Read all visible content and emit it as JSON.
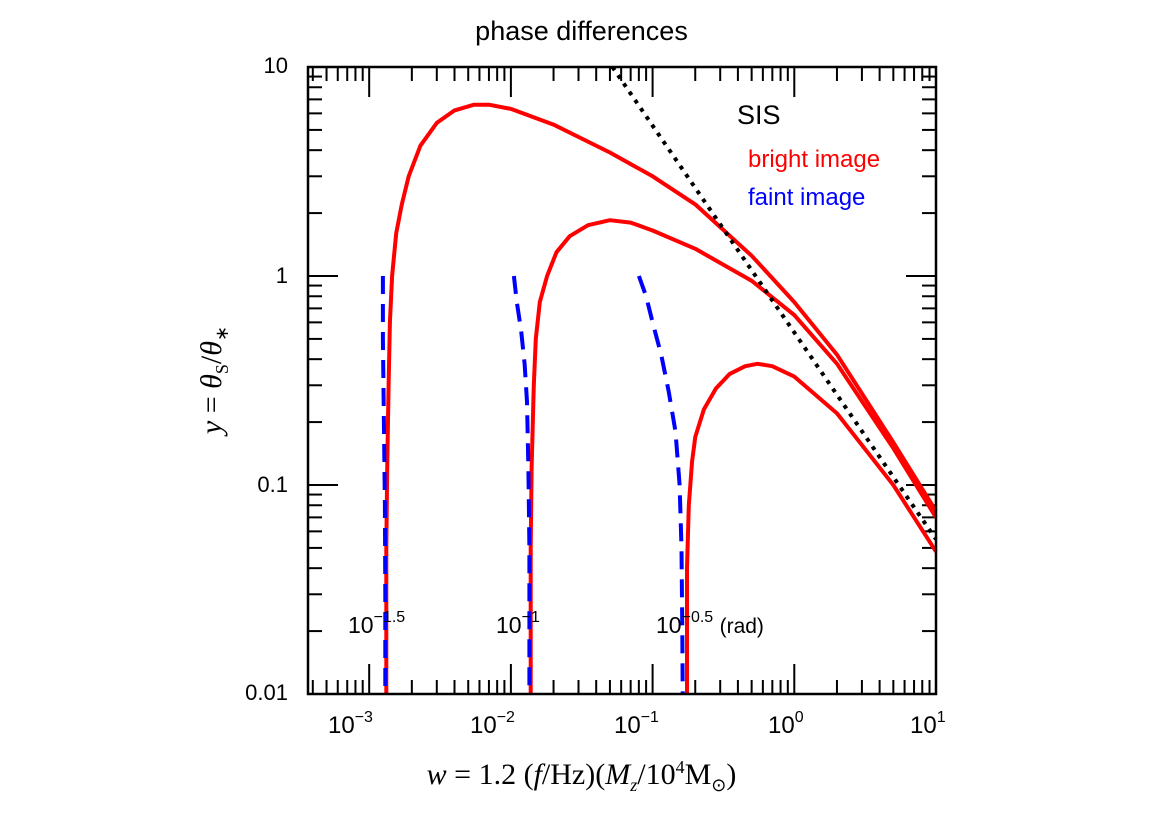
{
  "chart_data": {
    "type": "line",
    "title": "phase differences",
    "xlabel": "w = 1.2 (f/Hz)(M_z/10^4 M_sun)",
    "ylabel": "y = theta_s/theta_*",
    "xscale": "log",
    "yscale": "log",
    "xlim": [
      0.00037,
      10
    ],
    "ylim": [
      0.01,
      10
    ],
    "x_ticks": [
      "10^-3",
      "10^-2",
      "10^-1",
      "10^0",
      "10^1"
    ],
    "y_ticks": [
      "0.01",
      "0.1",
      "1",
      "10"
    ],
    "grid": false,
    "legend": {
      "position": "upper right",
      "header": "SIS",
      "entries": [
        {
          "label": "bright image",
          "color": "#ff0000",
          "style": "solid"
        },
        {
          "label": "faint image",
          "color": "#0000ff",
          "style": "dashed"
        }
      ]
    },
    "annotations": [
      {
        "text": "10^-1.5",
        "x": 0.0013,
        "y": 0.025
      },
      {
        "text": "10^-1",
        "x": 0.014,
        "y": 0.025
      },
      {
        "text": "10^-0.5 (rad)",
        "x": 0.17,
        "y": 0.025
      }
    ],
    "series": [
      {
        "name": "bright image, phase 10^-1.5",
        "color": "#ff0000",
        "style": "solid",
        "points": [
          [
            0.00132,
            0.01
          ],
          [
            0.00132,
            0.05
          ],
          [
            0.00134,
            0.12
          ],
          [
            0.00137,
            0.3
          ],
          [
            0.0014,
            0.6
          ],
          [
            0.00145,
            1.0
          ],
          [
            0.00155,
            1.6
          ],
          [
            0.0017,
            2.2
          ],
          [
            0.0019,
            3.0
          ],
          [
            0.0023,
            4.2
          ],
          [
            0.003,
            5.4
          ],
          [
            0.004,
            6.2
          ],
          [
            0.0055,
            6.6
          ],
          [
            0.007,
            6.6
          ],
          [
            0.01,
            6.3
          ],
          [
            0.02,
            5.3
          ],
          [
            0.05,
            3.9
          ],
          [
            0.1,
            3.0
          ],
          [
            0.2,
            2.2
          ],
          [
            0.5,
            1.25
          ],
          [
            1,
            0.75
          ],
          [
            2,
            0.42
          ],
          [
            5,
            0.16
          ],
          [
            10,
            0.075
          ]
        ]
      },
      {
        "name": "bright image, phase 10^-1",
        "color": "#ff0000",
        "style": "solid",
        "points": [
          [
            0.0138,
            0.01
          ],
          [
            0.0138,
            0.05
          ],
          [
            0.014,
            0.12
          ],
          [
            0.0145,
            0.3
          ],
          [
            0.015,
            0.5
          ],
          [
            0.016,
            0.75
          ],
          [
            0.018,
            1.0
          ],
          [
            0.021,
            1.3
          ],
          [
            0.026,
            1.55
          ],
          [
            0.035,
            1.75
          ],
          [
            0.05,
            1.85
          ],
          [
            0.07,
            1.8
          ],
          [
            0.1,
            1.65
          ],
          [
            0.2,
            1.35
          ],
          [
            0.5,
            0.95
          ],
          [
            1,
            0.65
          ],
          [
            2,
            0.38
          ],
          [
            5,
            0.15
          ],
          [
            10,
            0.07
          ]
        ]
      },
      {
        "name": "bright image, phase 10^-0.5",
        "color": "#ff0000",
        "style": "solid",
        "points": [
          [
            0.175,
            0.01
          ],
          [
            0.175,
            0.04
          ],
          [
            0.18,
            0.08
          ],
          [
            0.19,
            0.13
          ],
          [
            0.2,
            0.17
          ],
          [
            0.23,
            0.23
          ],
          [
            0.28,
            0.29
          ],
          [
            0.35,
            0.34
          ],
          [
            0.45,
            0.37
          ],
          [
            0.55,
            0.38
          ],
          [
            0.7,
            0.37
          ],
          [
            1,
            0.33
          ],
          [
            2,
            0.22
          ],
          [
            5,
            0.1
          ],
          [
            10,
            0.048
          ]
        ]
      },
      {
        "name": "faint image, phase 10^-1.5",
        "color": "#0000ff",
        "style": "dashed",
        "points": [
          [
            0.00125,
            1.0
          ],
          [
            0.00125,
            0.5
          ],
          [
            0.00127,
            0.2
          ],
          [
            0.00129,
            0.08
          ],
          [
            0.0013,
            0.03
          ],
          [
            0.0013,
            0.01
          ]
        ]
      },
      {
        "name": "faint image, phase 10^-1",
        "color": "#0000ff",
        "style": "dashed",
        "points": [
          [
            0.0105,
            1.0
          ],
          [
            0.011,
            0.75
          ],
          [
            0.0118,
            0.55
          ],
          [
            0.0125,
            0.38
          ],
          [
            0.013,
            0.25
          ],
          [
            0.0133,
            0.12
          ],
          [
            0.0135,
            0.05
          ],
          [
            0.0135,
            0.01
          ]
        ]
      },
      {
        "name": "faint image, phase 10^-0.5",
        "color": "#0000ff",
        "style": "dashed",
        "points": [
          [
            0.08,
            1.0
          ],
          [
            0.09,
            0.8
          ],
          [
            0.1,
            0.6
          ],
          [
            0.115,
            0.42
          ],
          [
            0.13,
            0.28
          ],
          [
            0.145,
            0.18
          ],
          [
            0.155,
            0.1
          ],
          [
            0.16,
            0.05
          ],
          [
            0.162,
            0.02
          ],
          [
            0.163,
            0.01
          ]
        ]
      },
      {
        "name": "SIS asymptote",
        "color": "#000000",
        "style": "dotted",
        "points": [
          [
            0.052,
            10
          ],
          [
            10,
            0.055
          ]
        ]
      }
    ]
  },
  "ui": {
    "title": "phase differences",
    "legend_header": "SIS",
    "legend_bright": "bright image",
    "legend_faint": "faint image",
    "y_ticks": [
      "10",
      "1",
      "0.1",
      "0.01"
    ],
    "x_tick_base": "10",
    "x_tick_exps": [
      "−3",
      "−2",
      "−1",
      "0",
      "1"
    ],
    "ann1_base": "10",
    "ann1_exp": "−1.5",
    "ann2_base": "10",
    "ann2_exp": "−1",
    "ann3_base": "10",
    "ann3_exp": "−0.5",
    "ann3_unit": "(rad)",
    "xaxis_w": "w",
    "xaxis_eq": " = 1.2 (",
    "xaxis_f": "f",
    "xaxis_hz": "/Hz)(",
    "xaxis_M": "M",
    "xaxis_z": "z",
    "xaxis_slash": "/10",
    "xaxis_4": "4",
    "xaxis_Msun": "M",
    "xaxis_sun": "⊙",
    "xaxis_close": ")",
    "yaxis_y": "y",
    "yaxis_eq": " = ",
    "yaxis_theta1": "θ",
    "yaxis_s": "S",
    "yaxis_slash": "/",
    "yaxis_theta2": "θ",
    "yaxis_star": "∗"
  }
}
